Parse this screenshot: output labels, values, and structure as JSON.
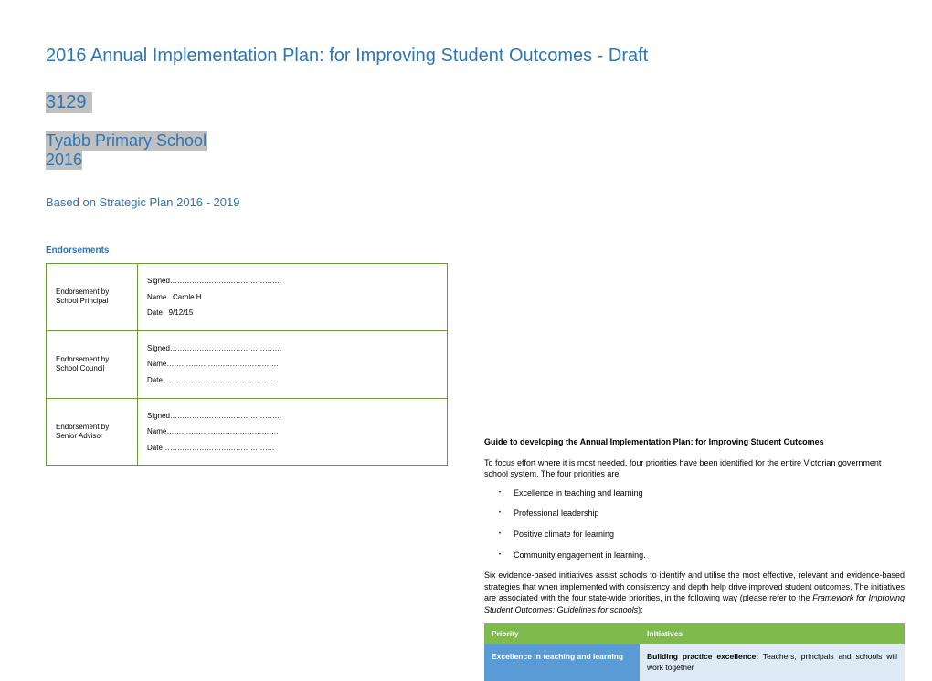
{
  "title": "2016 Annual Implementation Plan: for Improving Student Outcomes - Draft",
  "code": "3129",
  "school": "Tyabb Primary School",
  "year": "2016",
  "based": "Based on Strategic Plan 2016 - 2019",
  "endorsements": {
    "header": "Endorsements",
    "rows": [
      {
        "label": "Endorsement by School Principal",
        "signed": "Signed",
        "nameLabel": "Name",
        "nameVal": "Carole H",
        "dateLabel": "Date",
        "dateVal": "9/12/15"
      },
      {
        "label": "Endorsement by School Council",
        "signed": "Signed",
        "nameLabel": "Name",
        "nameVal": "",
        "dateLabel": "Date",
        "dateVal": ""
      },
      {
        "label": "Endorsement by Senior Advisor",
        "signed": "Signed",
        "nameLabel": "Name",
        "nameVal": "",
        "dateLabel": "Date",
        "dateVal": ""
      }
    ]
  },
  "guide": {
    "title": "Guide to developing the Annual Implementation Plan: for Improving Student Outcomes",
    "p1": "To focus effort where it is most needed, four priorities have been identified for the entire Victorian government school system.  The four priorities are:",
    "bullets": [
      "Excellence in teaching and learning",
      "Professional leadership",
      "Positive climate for learning",
      "Community engagement in learning."
    ],
    "p2a": "Six evidence-based initiatives assist schools to identify and utilise the most effective, relevant and evidence-based strategies that when implemented with consistency and depth help drive improved student outcomes. The initiatives are associated with the four state-wide priorities, in the following way (please refer to the ",
    "p2i": "Framework for Improving Student Outcomes: Guidelines for schools",
    "p2b": "):",
    "table": {
      "h1": "Priority",
      "h2": "Initiatives",
      "r1c1": "Excellence in teaching and learning",
      "r1c2a": "Building practice excellence:",
      "r1c2b": " Teachers, principals and schools will work together"
    }
  },
  "colors": {
    "blue": "#2e75b6",
    "grayHighlight": "#c0c0c0",
    "greenBorder": "#6a9a3a",
    "greenHeader": "#7fba4c",
    "blueCell": "#5b9bd5",
    "lightBlueCell": "#deeaf6"
  }
}
